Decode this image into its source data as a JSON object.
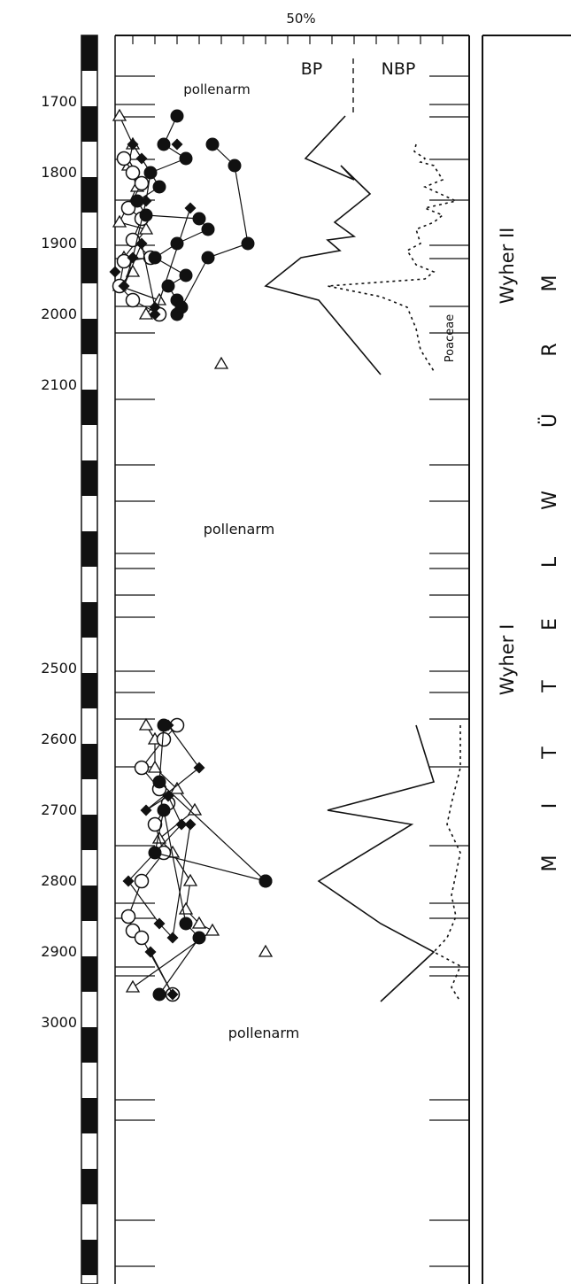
{
  "chart_data": {
    "type": "line",
    "top_label": "50%",
    "zone_label_upper": "Wyher II",
    "zone_label_lower": "Wyher I",
    "stage_letters": [
      "M",
      "I",
      "T",
      "T",
      "E",
      "L",
      "W",
      "Ü",
      "R",
      "M"
    ],
    "depth_ticks": [
      "1700",
      "1800",
      "1900",
      "2000",
      "2100",
      "2500",
      "2600",
      "2700",
      "2800",
      "2900",
      "3000"
    ],
    "pollenarm_labels": [
      "pollenarm",
      "pollenarm",
      "pollenarm"
    ],
    "bp_label": "BP",
    "nbp_label": "NBP",
    "poaceae_label": "Poaceae",
    "y_axis": {
      "min": 1620,
      "max": 3500,
      "reversed": true
    },
    "series_bp_upper": {
      "x": [
        390,
        345,
        400,
        385,
        418,
        378,
        400,
        370,
        384,
        340,
        300,
        360,
        430
      ],
      "y": [
        1720,
        1780,
        1810,
        1790,
        1830,
        1870,
        1890,
        1895,
        1910,
        1920,
        1960,
        1980,
        2085
      ]
    },
    "series_nbp_upper": {
      "x": [
        470,
        468,
        480,
        475,
        490,
        500,
        480,
        515,
        480,
        500,
        490,
        470,
        475,
        460,
        470,
        490,
        480,
        370,
        430,
        460,
        470,
        475,
        480,
        490
      ],
      "y": [
        1760,
        1770,
        1780,
        1785,
        1790,
        1810,
        1820,
        1840,
        1850,
        1860,
        1870,
        1880,
        1900,
        1910,
        1930,
        1940,
        1950,
        1960,
        1975,
        1990,
        2020,
        2050,
        2060,
        2080
      ]
    },
    "series_bp_lower": {
      "x": [
        470,
        490,
        370,
        465,
        360,
        430,
        490,
        430
      ],
      "y": [
        2580,
        2660,
        2700,
        2720,
        2800,
        2860,
        2900,
        2970
      ]
    },
    "series_nbp_lower": {
      "x": [
        520,
        520,
        510,
        505,
        520,
        510,
        515,
        505,
        490,
        520,
        510,
        520
      ],
      "y": [
        2580,
        2640,
        2690,
        2720,
        2760,
        2820,
        2850,
        2880,
        2900,
        2920,
        2950,
        2970
      ]
    },
    "sample_open_circles": {
      "x": [
        140,
        150,
        160,
        145,
        160,
        150,
        170,
        140,
        135,
        150,
        180,
        200,
        185,
        160,
        180,
        190,
        175,
        185,
        160,
        145,
        150,
        160,
        195
      ],
      "y": [
        1780,
        1800,
        1815,
        1850,
        1865,
        1895,
        1920,
        1925,
        1960,
        1980,
        2000,
        2580,
        2600,
        2640,
        2670,
        2690,
        2720,
        2760,
        2800,
        2850,
        2870,
        2880,
        2960
      ]
    },
    "sample_filled_circles": {
      "x": [
        200,
        185,
        210,
        170,
        180,
        155,
        165,
        225,
        235,
        200,
        175,
        210,
        190,
        200,
        200,
        185,
        180,
        300,
        175,
        185,
        210,
        225,
        180,
        240,
        265,
        280,
        235,
        205,
        300
      ],
      "y": [
        1720,
        1760,
        1780,
        1800,
        1820,
        1840,
        1860,
        1865,
        1880,
        1900,
        1920,
        1945,
        1960,
        1980,
        2000,
        2580,
        2660,
        2800,
        2760,
        2700,
        2860,
        2880,
        2960,
        1760,
        1790,
        1900,
        1920,
        1990,
        2800
      ]
    },
    "sample_open_triangles": {
      "x": [
        135,
        150,
        145,
        155,
        135,
        165,
        140,
        150,
        135,
        180,
        165,
        165,
        175,
        175,
        200,
        220,
        180,
        195,
        215,
        210,
        225,
        240,
        150,
        250,
        300
      ],
      "y": [
        1720,
        1760,
        1790,
        1820,
        1870,
        1880,
        1920,
        1940,
        1960,
        1980,
        2000,
        2580,
        2600,
        2640,
        2670,
        2700,
        2740,
        2760,
        2800,
        2840,
        2860,
        2870,
        2950,
        2070,
        2900
      ]
    },
    "sample_filled_diamonds": {
      "x": [
        130,
        150,
        160,
        170,
        165,
        150,
        140,
        160,
        175,
        200,
        175,
        215,
        190,
        225,
        165,
        190,
        205,
        145,
        180,
        195,
        215,
        170,
        195
      ],
      "y": [
        1940,
        1760,
        1780,
        1800,
        1840,
        1920,
        1960,
        1900,
        1990,
        1760,
        2000,
        1850,
        2580,
        2640,
        2700,
        2680,
        2720,
        2800,
        2860,
        2880,
        2720,
        2900,
        2960
      ]
    }
  }
}
